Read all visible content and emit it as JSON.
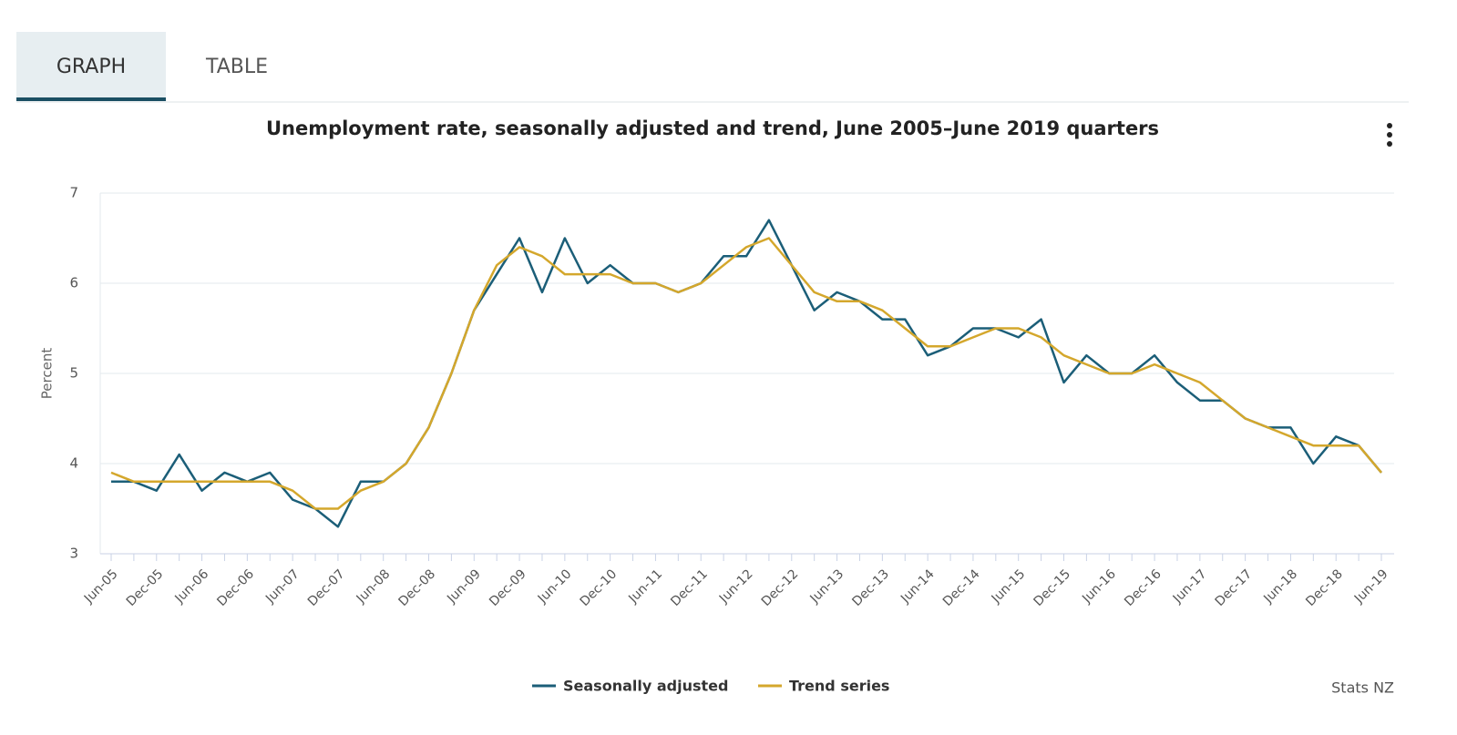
{
  "tabs": [
    "GRAPH",
    "TABLE"
  ],
  "chart_data": {
    "type": "line",
    "title": "Unemployment rate, seasonally adjusted and trend, June 2005–June 2019 quarters",
    "y_label": "Percent",
    "source": "Stats NZ",
    "categories": [
      "Jun-05",
      null,
      "Dec-05",
      null,
      "Jun-06",
      null,
      "Dec-06",
      null,
      "Jun-07",
      null,
      "Dec-07",
      null,
      "Jun-08",
      null,
      "Dec-08",
      null,
      "Jun-09",
      null,
      "Dec-09",
      null,
      "Jun-10",
      null,
      "Dec-10",
      null,
      "Jun-11",
      null,
      "Dec-11",
      null,
      "Jun-12",
      null,
      "Dec-12",
      null,
      "Jun-13",
      null,
      "Dec-13",
      null,
      "Jun-14",
      null,
      "Dec-14",
      null,
      "Jun-15",
      null,
      "Dec-15",
      null,
      "Jun-16",
      null,
      "Dec-16",
      null,
      "Jun-17",
      null,
      "Dec-17",
      null,
      "Jun-18",
      null,
      "Dec-18",
      null,
      "Jun-19"
    ],
    "series": [
      {
        "name": "Seasonally adjusted",
        "color": "#1b5e78",
        "values": [
          3.8,
          3.8,
          3.7,
          4.1,
          3.7,
          3.9,
          3.8,
          3.9,
          3.6,
          3.5,
          3.3,
          3.8,
          3.8,
          4.0,
          4.4,
          5.0,
          5.7,
          6.1,
          6.5,
          5.9,
          6.5,
          6.0,
          6.2,
          6.0,
          6.0,
          5.9,
          6.0,
          6.3,
          6.3,
          6.7,
          6.2,
          5.7,
          5.9,
          5.8,
          5.6,
          5.6,
          5.2,
          5.3,
          5.5,
          5.5,
          5.4,
          5.6,
          4.9,
          5.2,
          5.0,
          5.0,
          5.2,
          4.9,
          4.7,
          4.7,
          4.5,
          4.4,
          4.4,
          4.0,
          4.3,
          4.2,
          3.9
        ]
      },
      {
        "name": "Trend series",
        "color": "#d4a72c",
        "values": [
          3.9,
          3.8,
          3.8,
          3.8,
          3.8,
          3.8,
          3.8,
          3.8,
          3.7,
          3.5,
          3.5,
          3.7,
          3.8,
          4.0,
          4.4,
          5.0,
          5.7,
          6.2,
          6.4,
          6.3,
          6.1,
          6.1,
          6.1,
          6.0,
          6.0,
          5.9,
          6.0,
          6.2,
          6.4,
          6.5,
          6.2,
          5.9,
          5.8,
          5.8,
          5.7,
          5.5,
          5.3,
          5.3,
          5.4,
          5.5,
          5.5,
          5.4,
          5.2,
          5.1,
          5.0,
          5.0,
          5.1,
          5.0,
          4.9,
          4.7,
          4.5,
          4.4,
          4.3,
          4.2,
          4.2,
          4.2,
          3.9
        ]
      }
    ],
    "ylim": [
      3,
      7
    ],
    "yticks": [
      3,
      4,
      5,
      6,
      7
    ],
    "grid": true
  }
}
